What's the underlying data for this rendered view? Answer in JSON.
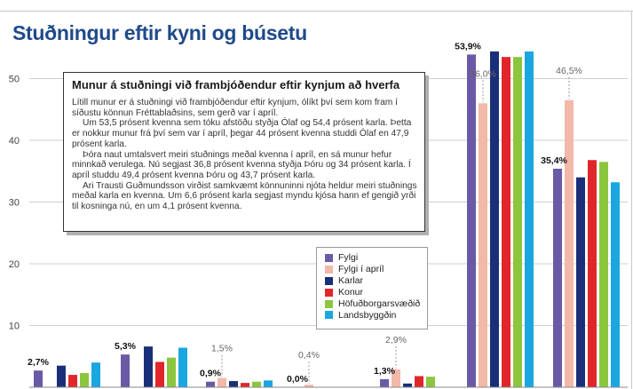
{
  "title": "Stuðningur eftir kyni og búsetu",
  "text_box": {
    "heading": "Munur á stuðningi við frambjóðendur eftir kynjum að hverfa",
    "paragraphs": [
      "Lítill munur er á stuðningi við frambjóðendur eftir kynjum, ólíkt því sem kom fram í síðustu könnun Fréttablaðsins, sem gerð var í apríl.",
      "Um 53,5 prósent kvenna sem tóku afstöðu styðja Ólaf og 54,4 prósent karla. Þetta er nokkur munur frá því sem var í apríl, þegar 44 prósent kvenna studdi Ólaf en 47,9 prósent karla.",
      "Þóra naut umtalsvert meiri stuðnings meðal kvenna í apríl, en sá munur hefur minnkað verulega. Nú segjast 36,8 prósent kvenna styðja Þóru og 34 prósent karla. Í apríl studdu 49,4 prósent kvenna Þóru og 43,7 prósent karla.",
      "Ari Trausti Guðmundsson virðist samkvæmt könnuninni njóta heldur meiri stuðnings meðal karla en kvenna. Um 6,6 prósent karla segjast myndu kjósa hann ef gengið yrði til kosninga nú, en um 4,1 prósent kvenna."
    ]
  },
  "chart_data": {
    "type": "bar",
    "title": "Stuðningur eftir kyni og búsetu",
    "xlabel": "",
    "ylabel": "",
    "ylim": [
      0,
      55
    ],
    "yticks": [
      10,
      20,
      30,
      40,
      50
    ],
    "grid": true,
    "legend_placement": "center",
    "categories": [
      "",
      "",
      "",
      "",
      "",
      "",
      "",
      ""
    ],
    "series": [
      {
        "name": "Fylgi",
        "color": "#6a5aa6",
        "values": [
          2.7,
          5.3,
          0.9,
          0.0,
          1.3,
          53.9,
          35.4,
          null
        ]
      },
      {
        "name": "Fylgi í apríl",
        "color": "#f2b8aa",
        "values": [
          null,
          null,
          1.5,
          0.4,
          2.9,
          46.0,
          46.5,
          null
        ]
      },
      {
        "name": "Karlar",
        "color": "#1a2f7a",
        "values": [
          3.5,
          6.6,
          1.0,
          null,
          0.6,
          54.4,
          34.0,
          null
        ]
      },
      {
        "name": "Konur",
        "color": "#e0262a",
        "values": [
          2.0,
          4.1,
          0.7,
          null,
          1.8,
          53.5,
          36.8,
          null
        ]
      },
      {
        "name": "Höfuðborgarsvæðið",
        "color": "#8cc63f",
        "values": [
          2.3,
          4.8,
          0.9,
          null,
          1.7,
          53.5,
          36.5,
          null
        ]
      },
      {
        "name": "Landsbyggðin",
        "color": "#1aa7e0",
        "values": [
          4.0,
          6.4,
          1.1,
          null,
          null,
          54.4,
          33.2,
          null
        ]
      }
    ],
    "bar_labels": [
      {
        "group": 0,
        "series": 0,
        "text": "2,7%",
        "style": "bold"
      },
      {
        "group": 1,
        "series": 0,
        "text": "5,3%",
        "style": "bold"
      },
      {
        "group": 2,
        "series": 0,
        "text": "0,9%",
        "style": "bold"
      },
      {
        "group": 2,
        "series": 1,
        "text": "1,5%",
        "style": "light"
      },
      {
        "group": 3,
        "series": 0,
        "text": "0,0%",
        "style": "bold"
      },
      {
        "group": 3,
        "series": 1,
        "text": "0,4%",
        "style": "light"
      },
      {
        "group": 4,
        "series": 0,
        "text": "1,3%",
        "style": "bold"
      },
      {
        "group": 4,
        "series": 1,
        "text": "2,9%",
        "style": "light"
      },
      {
        "group": 5,
        "series": 0,
        "text": "53,9%",
        "style": "bold"
      },
      {
        "group": 5,
        "series": 1,
        "text": "46,0%",
        "style": "light"
      },
      {
        "group": 6,
        "series": 0,
        "text": "35,4%",
        "style": "bold"
      },
      {
        "group": 6,
        "series": 1,
        "text": "46,5%",
        "style": "light"
      }
    ]
  },
  "legend": [
    {
      "label": "Fylgi",
      "color": "#6a5aa6"
    },
    {
      "label": "Fylgi í apríl",
      "color": "#f2b8aa"
    },
    {
      "label": "Karlar",
      "color": "#1a2f7a"
    },
    {
      "label": "Konur",
      "color": "#e0262a"
    },
    {
      "label": "Höfuðborgarsvæðið",
      "color": "#8cc63f"
    },
    {
      "label": "Landsbyggðin",
      "color": "#1aa7e0"
    }
  ]
}
